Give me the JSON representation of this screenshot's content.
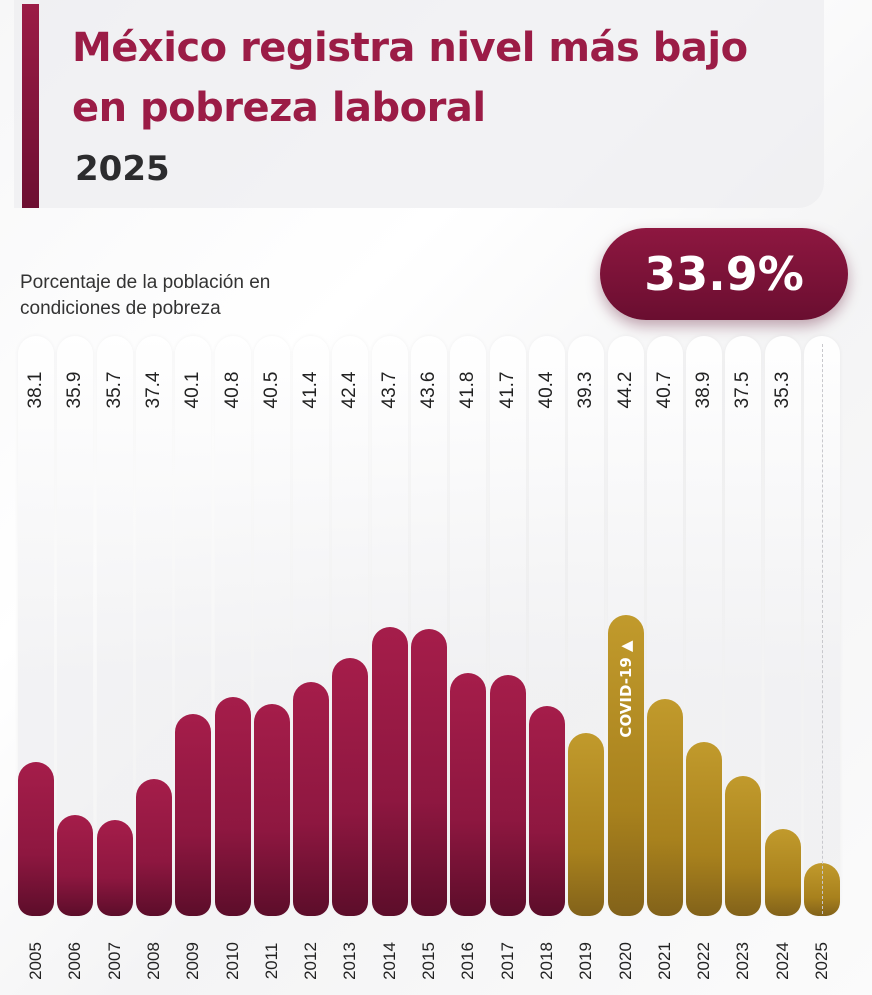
{
  "header": {
    "title": "México registra nivel más bajo en pobreza laboral",
    "year": "2025"
  },
  "callout": {
    "value": "33.9%"
  },
  "chart_data": {
    "type": "bar",
    "title": "México registra nivel más bajo en pobreza laboral",
    "subtitle": "2025",
    "ylabel": "Porcentaje de la población en condiciones de pobreza",
    "categories": [
      "2005",
      "2006",
      "2007",
      "2008",
      "2009",
      "2010",
      "2011",
      "2012",
      "2013",
      "2014",
      "2015",
      "2016",
      "2017",
      "2018",
      "2019",
      "2020",
      "2021",
      "2022",
      "2023",
      "2024",
      "2025"
    ],
    "values": [
      38.1,
      35.9,
      35.7,
      37.4,
      40.1,
      40.8,
      40.5,
      41.4,
      42.4,
      43.7,
      43.6,
      41.8,
      41.7,
      40.4,
      39.3,
      44.2,
      40.7,
      38.9,
      37.5,
      35.3,
      33.9
    ],
    "value_labels": [
      "38.1",
      "35.9",
      "35.7",
      "37.4",
      "40.1",
      "40.8",
      "40.5",
      "41.4",
      "42.4",
      "43.7",
      "43.6",
      "41.8",
      "41.7",
      "40.4",
      "39.3",
      "44.2",
      "40.7",
      "38.9",
      "37.5",
      "35.3",
      ""
    ],
    "highlight_value": "33.9%",
    "annotation": {
      "category": "2020",
      "text": "COVID-19 ▲"
    },
    "colors": {
      "period_1": "#8e1740",
      "period_2": "#a8811d"
    },
    "period_split_index": 14,
    "ylim": [
      31.7,
      44.5
    ],
    "grid": false,
    "legend": "none"
  }
}
